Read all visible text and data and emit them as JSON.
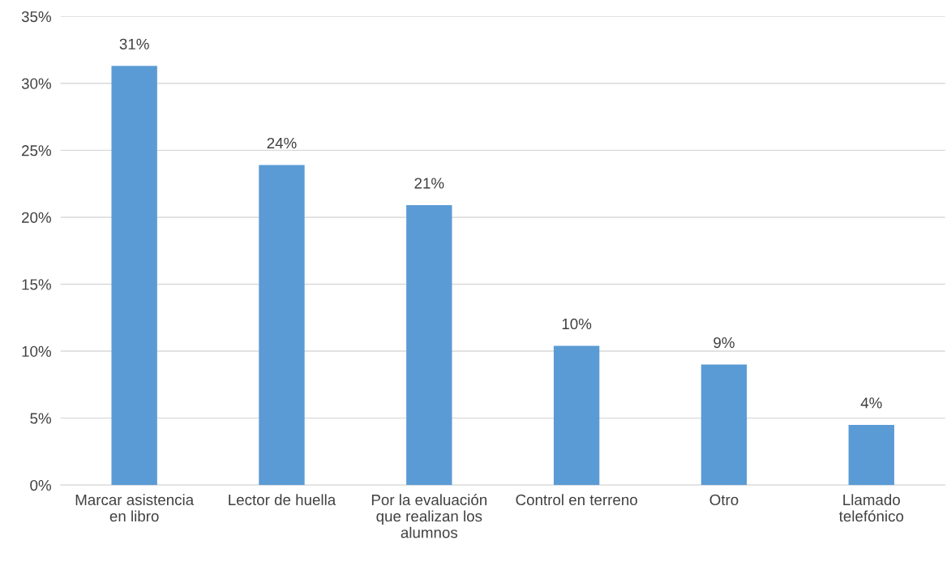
{
  "chart_data": {
    "type": "bar",
    "categories": [
      "Marcar asistencia\nen libro",
      "Lector de huella",
      "Por la evaluación\nque realizan los\nalumnos",
      "Control en terreno",
      "Otro",
      "Llamado\ntelefónico"
    ],
    "values": [
      31.3,
      23.9,
      20.9,
      10.4,
      9.0,
      4.5
    ],
    "value_labels": [
      "31%",
      "24%",
      "21%",
      "10%",
      "9%",
      "4%"
    ],
    "color": "#5b9bd5",
    "ylim": [
      0,
      35
    ],
    "yticks": [
      {
        "value": 0,
        "label": "0%"
      },
      {
        "value": 5,
        "label": "5%"
      },
      {
        "value": 10,
        "label": "10%"
      },
      {
        "value": 15,
        "label": "15%"
      },
      {
        "value": 20,
        "label": "20%"
      },
      {
        "value": 25,
        "label": "25%"
      },
      {
        "value": 30,
        "label": "30%"
      },
      {
        "value": 35,
        "label": "35%"
      }
    ],
    "grid": "y",
    "legend": false
  }
}
